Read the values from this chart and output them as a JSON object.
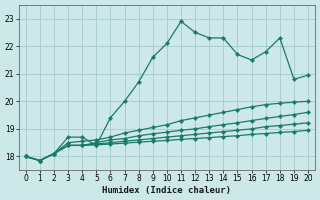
{
  "xlabel": "Humidex (Indice chaleur)",
  "bg_color": "#cce8e8",
  "grid_color": "#aacfcf",
  "line_color": "#1a7a6a",
  "xlim": [
    -0.5,
    20.5
  ],
  "ylim": [
    17.5,
    23.5
  ],
  "xticks": [
    0,
    1,
    2,
    3,
    4,
    5,
    6,
    7,
    8,
    9,
    10,
    11,
    12,
    13,
    14,
    15,
    16,
    17,
    18,
    19,
    20
  ],
  "yticks": [
    18,
    19,
    20,
    21,
    22,
    23
  ],
  "series": [
    [
      18.0,
      17.85,
      18.1,
      18.7,
      18.7,
      18.4,
      19.4,
      20.0,
      20.7,
      21.6,
      22.1,
      22.9,
      22.5,
      22.3,
      22.3,
      21.7,
      21.5,
      21.8,
      22.3,
      20.8,
      20.95
    ],
    [
      18.0,
      17.85,
      18.1,
      18.5,
      18.55,
      18.6,
      18.7,
      18.85,
      18.95,
      19.05,
      19.15,
      19.3,
      19.4,
      19.5,
      19.6,
      19.7,
      19.8,
      19.88,
      19.93,
      19.97,
      20.0
    ],
    [
      18.0,
      17.85,
      18.1,
      18.4,
      18.4,
      18.5,
      18.6,
      18.65,
      18.75,
      18.82,
      18.88,
      18.95,
      19.0,
      19.08,
      19.15,
      19.22,
      19.3,
      19.38,
      19.45,
      19.52,
      19.6
    ],
    [
      18.0,
      17.85,
      18.1,
      18.4,
      18.4,
      18.45,
      18.5,
      18.55,
      18.6,
      18.65,
      18.7,
      18.75,
      18.8,
      18.85,
      18.9,
      18.95,
      19.0,
      19.08,
      19.12,
      19.17,
      19.22
    ],
    [
      18.0,
      17.85,
      18.1,
      18.4,
      18.4,
      18.42,
      18.45,
      18.48,
      18.52,
      18.55,
      18.58,
      18.62,
      18.65,
      18.68,
      18.72,
      18.75,
      18.8,
      18.83,
      18.87,
      18.9,
      18.95
    ]
  ]
}
